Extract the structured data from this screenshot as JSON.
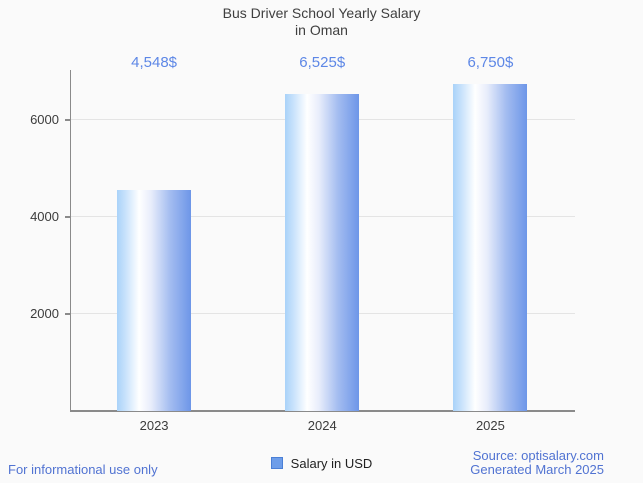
{
  "title": {
    "line1": "Bus Driver School Yearly Salary",
    "line2": "in Oman"
  },
  "chart_data": {
    "type": "bar",
    "categories": [
      "2023",
      "2024",
      "2025"
    ],
    "series": [
      {
        "name": "Salary in USD",
        "values": [
          4548,
          6525,
          6750
        ]
      }
    ],
    "value_labels": [
      "4,548$",
      "6,525$",
      "6,750$"
    ],
    "title": "Bus Driver School Yearly Salary in Oman",
    "xlabel": "",
    "ylabel": "",
    "yticks": [
      2000,
      4000,
      6000
    ],
    "ylim": [
      0,
      7030
    ],
    "grid": true,
    "legend_position": "bottom",
    "bar_gradient_stops": [
      "#a9d2f9 0%",
      "#cfe6fc 14%",
      "#ffffff 30%",
      "#e8edfb 46%",
      "#a3bcf0 72%",
      "#6d96e8 100%"
    ]
  },
  "legend": {
    "swatch_fill": "#6d9de9",
    "swatch_border": "#4a7fd6"
  },
  "footer": {
    "disclaimer": "For informational use only",
    "source": "Source: optisalary.com",
    "generated": "Generated March 2025"
  },
  "colors": {
    "background": "#fafafa",
    "title_text": "#3f3f3f",
    "axis_text": "#3c3c3c",
    "value_label_blue": "#5d87e6",
    "footer_blue": "#5173d2",
    "gridline": "#e4e4e4",
    "axis_line": "#8a8a8a"
  }
}
